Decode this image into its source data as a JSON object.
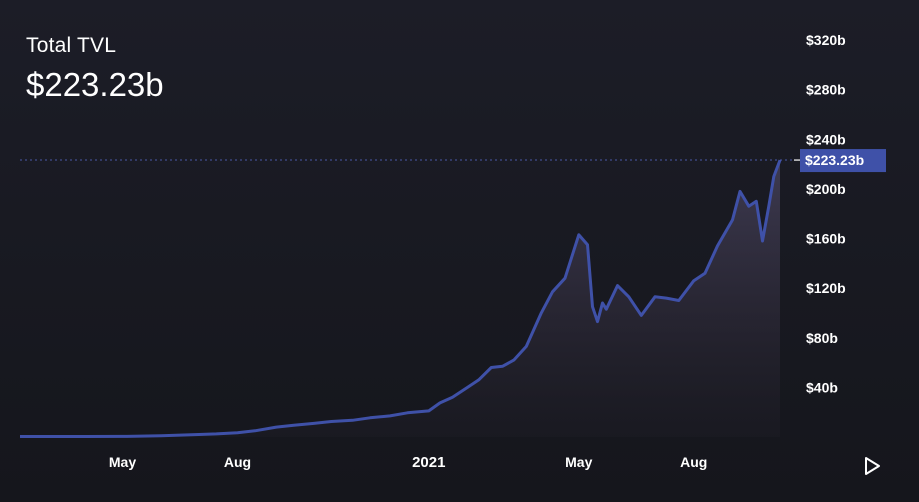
{
  "header": {
    "title": "Total TVL",
    "value": "$223.23b"
  },
  "colors": {
    "line": "#3f51a8",
    "badge": "#3f51a8",
    "background": "#1a1b23"
  },
  "chart_data": {
    "type": "area",
    "title": "Total TVL",
    "xlabel": "",
    "ylabel": "",
    "ylim": [
      0,
      320
    ],
    "y_unit": "billions USD",
    "y_ticks": [
      "$40b",
      "$80b",
      "$120b",
      "$160b",
      "$200b",
      "$240b",
      "$280b",
      "$320b"
    ],
    "y_tick_values": [
      40,
      80,
      120,
      160,
      200,
      240,
      280,
      320
    ],
    "x_ticks": [
      "May",
      "Aug",
      "2021",
      "May",
      "Aug"
    ],
    "x_tick_dates": [
      "2020-05-01",
      "2020-08-01",
      "2021-01-01",
      "2021-05-01",
      "2021-08-01"
    ],
    "x_range": [
      "2020-02-09",
      "2021-10-09"
    ],
    "current_value_label": "$223.23b",
    "current_value": 223.23,
    "grid": false,
    "legend": "none",
    "series": [
      {
        "x": [
          "2020-02-09",
          "2020-03-01",
          "2020-04-01",
          "2020-05-01",
          "2020-06-01",
          "2020-07-01",
          "2020-07-15",
          "2020-08-01",
          "2020-08-15",
          "2020-09-01",
          "2020-09-15",
          "2020-10-01",
          "2020-10-15",
          "2020-11-01",
          "2020-11-15",
          "2020-12-01",
          "2020-12-15",
          "2021-01-01",
          "2021-01-10",
          "2021-01-20",
          "2021-02-01",
          "2021-02-10",
          "2021-02-20",
          "2021-03-01",
          "2021-03-10",
          "2021-03-20",
          "2021-04-01",
          "2021-04-10",
          "2021-04-20",
          "2021-05-01",
          "2021-05-08",
          "2021-05-12",
          "2021-05-16",
          "2021-05-20",
          "2021-05-23",
          "2021-06-01",
          "2021-06-10",
          "2021-06-20",
          "2021-07-01",
          "2021-07-10",
          "2021-07-20",
          "2021-08-01",
          "2021-08-10",
          "2021-08-20",
          "2021-09-01",
          "2021-09-07",
          "2021-09-14",
          "2021-09-20",
          "2021-09-25",
          "2021-09-30",
          "2021-10-04",
          "2021-10-09"
        ],
        "values": [
          0.4,
          0.4,
          0.4,
          0.5,
          1.0,
          2.0,
          2.5,
          3.5,
          5.0,
          8.0,
          9.5,
          11.0,
          12.5,
          13.5,
          15.5,
          17.0,
          19.5,
          21.0,
          27.5,
          32.0,
          40.0,
          46.0,
          56.0,
          57.0,
          62.0,
          73.0,
          100.0,
          117.0,
          128.0,
          163.0,
          155.0,
          105.0,
          93.0,
          108.0,
          103.0,
          122.0,
          113.0,
          98.0,
          113.0,
          112.0,
          110.0,
          126.0,
          132.0,
          154.0,
          175.0,
          198.0,
          186.0,
          190.0,
          158.0,
          186.0,
          210.0,
          223.23
        ]
      }
    ]
  },
  "controls": {
    "play_icon": "play-icon"
  }
}
